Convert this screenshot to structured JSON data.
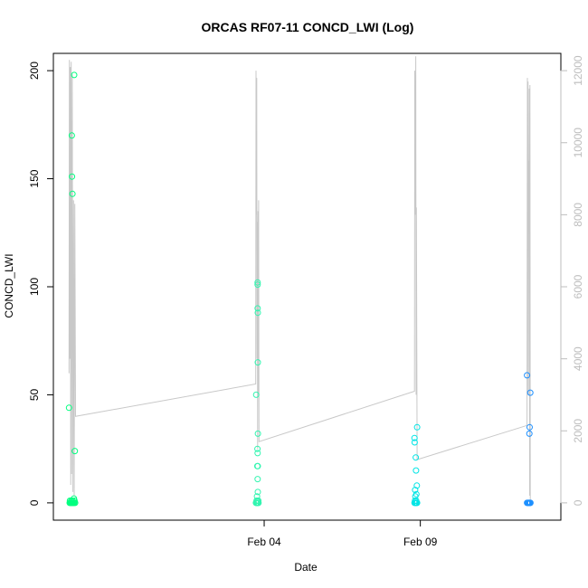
{
  "chart_data": {
    "type": "scatter",
    "title": "ORCAS RF07-11 CONCD_LWI (Log)",
    "xlabel": "Date",
    "ylabel": "CONCD_LWI",
    "xlim": [
      "2016-01-28T06:00",
      "2016-02-13T12:00"
    ],
    "ylim": [
      -8,
      208
    ],
    "y2lim": [
      -480,
      12480
    ],
    "x_ticks": [
      {
        "value": "2016-02-04T00:00",
        "label": "Feb 04"
      },
      {
        "value": "2016-02-09T00:00",
        "label": "Feb 09"
      }
    ],
    "y_ticks": [
      0,
      50,
      100,
      150,
      200
    ],
    "y2_ticks": [
      0,
      2000,
      4000,
      6000,
      8000,
      10000,
      12000
    ],
    "grid": false,
    "legend": "none",
    "background_line": {
      "color": "#c8c8c8",
      "points": [
        [
          "2016-01-28T18:00",
          3600
        ],
        [
          "2016-01-28T18:20",
          12300
        ],
        [
          "2016-01-28T18:40",
          4000
        ],
        [
          "2016-01-28T19:00",
          12100
        ],
        [
          "2016-01-28T19:20",
          500
        ],
        [
          "2016-01-28T19:40",
          12250
        ],
        [
          "2016-01-28T20:00",
          800
        ],
        [
          "2016-01-28T20:30",
          11900
        ],
        [
          "2016-01-28T21:00",
          300
        ],
        [
          "2016-01-28T21:30",
          8400
        ],
        [
          "2016-01-28T22:00",
          200
        ],
        [
          "2016-01-28T22:30",
          8300
        ],
        [
          "2016-01-28T23:00",
          2400
        ],
        [
          "2016-02-03T17:30",
          3300
        ],
        [
          "2016-02-03T17:45",
          12000
        ],
        [
          "2016-02-03T18:00",
          8000
        ],
        [
          "2016-02-03T18:15",
          11800
        ],
        [
          "2016-02-03T18:30",
          4000
        ],
        [
          "2016-02-03T18:45",
          7800
        ],
        [
          "2016-02-03T19:00",
          1500
        ],
        [
          "2016-02-03T19:15",
          8100
        ],
        [
          "2016-02-03T19:30",
          3000
        ],
        [
          "2016-02-03T19:45",
          8400
        ],
        [
          "2016-02-03T20:00",
          1700
        ],
        [
          "2016-02-08T19:30",
          3100
        ],
        [
          "2016-02-08T19:45",
          12000
        ],
        [
          "2016-02-08T20:00",
          8000
        ],
        [
          "2016-02-08T20:15",
          8400
        ],
        [
          "2016-02-08T20:30",
          12400
        ],
        [
          "2016-02-08T20:45",
          3000
        ],
        [
          "2016-02-08T21:00",
          8200
        ],
        [
          "2016-02-08T21:30",
          1200
        ],
        [
          "2016-02-12T10:00",
          2150
        ],
        [
          "2016-02-12T10:15",
          11800
        ],
        [
          "2016-02-12T10:30",
          3000
        ],
        [
          "2016-02-12T10:45",
          11700
        ],
        [
          "2016-02-12T11:00",
          7900
        ],
        [
          "2016-02-12T11:15",
          9500
        ],
        [
          "2016-02-12T11:30",
          3000
        ],
        [
          "2016-02-12T11:45",
          11500
        ],
        [
          "2016-02-12T12:00",
          200
        ],
        [
          "2016-02-12T12:15",
          11600
        ],
        [
          "2016-02-12T12:30",
          0
        ]
      ]
    },
    "series": [
      {
        "color": "#00ff7f",
        "points": [
          [
            "2016-01-28T18:00",
            44
          ],
          [
            "2016-01-28T22:00",
            198
          ],
          [
            "2016-01-28T20:10",
            170
          ],
          [
            "2016-01-28T20:20",
            151
          ],
          [
            "2016-01-28T20:40",
            143
          ],
          [
            "2016-01-28T22:30",
            24
          ],
          [
            "2016-01-28T18:30",
            0
          ],
          [
            "2016-01-28T19:00",
            0
          ],
          [
            "2016-01-28T19:30",
            0
          ],
          [
            "2016-01-28T20:00",
            0
          ],
          [
            "2016-01-28T20:30",
            0
          ],
          [
            "2016-01-28T21:00",
            0
          ],
          [
            "2016-01-28T21:30",
            0
          ],
          [
            "2016-01-28T22:00",
            0
          ],
          [
            "2016-01-28T22:45",
            0
          ],
          [
            "2016-01-28T18:45",
            1
          ],
          [
            "2016-01-28T19:45",
            1
          ],
          [
            "2016-01-28T20:45",
            1
          ],
          [
            "2016-01-28T21:45",
            2
          ],
          [
            "2016-01-28T22:15",
            1
          ]
        ]
      },
      {
        "color": "#33f5b0",
        "points": [
          [
            "2016-02-03T17:50",
            50
          ],
          [
            "2016-02-03T19:00",
            102
          ],
          [
            "2016-02-03T19:00",
            101
          ],
          [
            "2016-02-03T19:00",
            90
          ],
          [
            "2016-02-03T19:05",
            88
          ],
          [
            "2016-02-03T19:05",
            65
          ],
          [
            "2016-02-03T19:10",
            32
          ],
          [
            "2016-02-03T18:50",
            25
          ],
          [
            "2016-02-03T19:00",
            23
          ],
          [
            "2016-02-03T18:40",
            17
          ],
          [
            "2016-02-03T19:05",
            17
          ],
          [
            "2016-02-03T19:00",
            11
          ],
          [
            "2016-02-03T19:05",
            5
          ],
          [
            "2016-02-03T18:30",
            3
          ],
          [
            "2016-02-03T17:40",
            0
          ],
          [
            "2016-02-03T18:00",
            0
          ],
          [
            "2016-02-03T18:20",
            0
          ],
          [
            "2016-02-03T18:40",
            0
          ],
          [
            "2016-02-03T19:00",
            0
          ],
          [
            "2016-02-03T19:20",
            0
          ],
          [
            "2016-02-03T19:40",
            0
          ],
          [
            "2016-02-03T18:10",
            1
          ],
          [
            "2016-02-03T18:50",
            1
          ],
          [
            "2016-02-03T19:30",
            1
          ]
        ]
      },
      {
        "color": "#00e5e5",
        "points": [
          [
            "2016-02-08T21:30",
            35
          ],
          [
            "2016-02-08T19:30",
            30
          ],
          [
            "2016-02-08T19:40",
            28
          ],
          [
            "2016-02-08T20:30",
            21
          ],
          [
            "2016-02-08T20:40",
            15
          ],
          [
            "2016-02-08T21:20",
            8
          ],
          [
            "2016-02-08T20:00",
            6
          ],
          [
            "2016-02-08T21:00",
            4
          ],
          [
            "2016-02-08T20:10",
            3
          ],
          [
            "2016-02-08T19:30",
            0
          ],
          [
            "2016-02-08T20:00",
            0
          ],
          [
            "2016-02-08T20:30",
            0
          ],
          [
            "2016-02-08T21:00",
            0
          ],
          [
            "2016-02-08T21:30",
            0
          ],
          [
            "2016-02-08T19:50",
            1
          ],
          [
            "2016-02-08T20:50",
            1
          ]
        ]
      },
      {
        "color": "#1e90ff",
        "points": [
          [
            "2016-02-12T10:00",
            59
          ],
          [
            "2016-02-12T12:30",
            51
          ],
          [
            "2016-02-12T12:00",
            35
          ],
          [
            "2016-02-12T11:50",
            32
          ],
          [
            "2016-02-12T10:00",
            0
          ],
          [
            "2016-02-12T10:20",
            0
          ],
          [
            "2016-02-12T10:40",
            0
          ],
          [
            "2016-02-12T11:00",
            0
          ],
          [
            "2016-02-12T11:20",
            0
          ],
          [
            "2016-02-12T11:40",
            0
          ],
          [
            "2016-02-12T12:00",
            0
          ],
          [
            "2016-02-12T12:20",
            0
          ],
          [
            "2016-02-12T12:40",
            0
          ]
        ]
      }
    ]
  }
}
